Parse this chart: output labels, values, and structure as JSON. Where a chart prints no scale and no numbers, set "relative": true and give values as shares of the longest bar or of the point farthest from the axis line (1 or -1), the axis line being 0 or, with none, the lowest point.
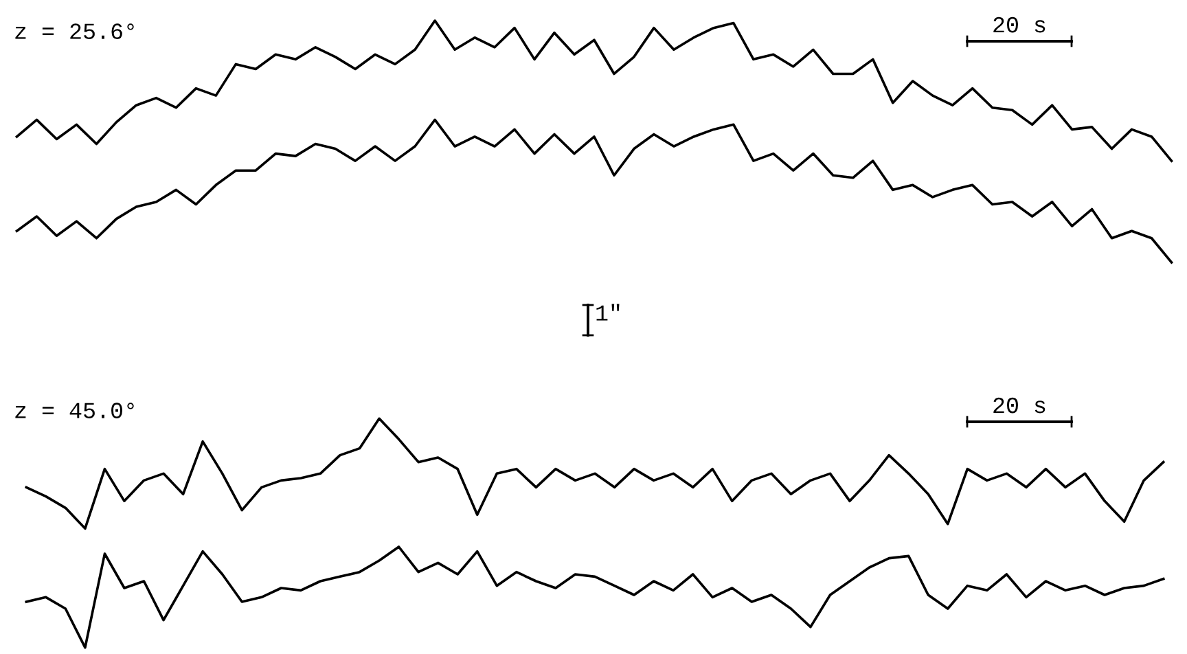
{
  "chart_data": [
    {
      "type": "line",
      "relative": true,
      "categories": [
        null,
        null,
        null,
        null,
        null,
        null,
        null,
        null,
        null,
        null,
        null,
        null,
        null,
        null,
        null,
        null,
        null,
        null,
        null,
        null,
        null,
        null,
        null,
        null,
        null,
        null,
        null,
        null,
        null,
        null,
        null,
        null,
        null,
        null,
        null,
        null,
        null,
        null,
        null,
        null,
        null,
        null,
        null,
        null,
        null,
        null,
        null,
        null,
        null,
        null,
        null,
        null,
        null,
        null,
        null,
        null,
        null,
        null,
        null
      ],
      "annotations": [
        "z = 25.6°",
        "20 s",
        "1\""
      ],
      "series": [
        {
          "color": "#000000",
          "values": [
            0.52,
            0.59,
            0.51,
            0.57,
            0.49,
            0.58,
            0.65,
            0.68,
            0.64,
            0.72,
            0.69,
            0.82,
            0.8,
            0.86,
            0.84,
            0.89,
            0.85,
            0.8,
            0.86,
            0.82,
            0.88,
            1.0,
            0.88,
            0.93,
            0.89,
            0.97,
            0.84,
            0.95,
            0.86,
            0.92,
            0.78,
            0.85,
            0.97,
            0.88,
            0.93,
            0.97,
            0.99,
            0.84,
            0.86,
            0.81,
            0.88,
            0.78,
            0.78,
            0.84,
            0.66,
            0.75,
            0.69,
            0.65,
            0.72,
            0.64,
            0.63,
            0.57,
            0.65,
            0.55,
            0.56,
            0.47,
            0.55,
            0.52,
            0.42
          ]
        },
        {
          "color": "#000000",
          "values": [
            0.13,
            0.19,
            0.11,
            0.17,
            0.1,
            0.18,
            0.23,
            0.25,
            0.3,
            0.24,
            0.32,
            0.38,
            0.38,
            0.45,
            0.44,
            0.49,
            0.47,
            0.42,
            0.48,
            0.42,
            0.48,
            0.59,
            0.48,
            0.52,
            0.48,
            0.55,
            0.45,
            0.53,
            0.45,
            0.52,
            0.36,
            0.47,
            0.53,
            0.48,
            0.52,
            0.55,
            0.57,
            0.42,
            0.45,
            0.38,
            0.45,
            0.36,
            0.35,
            0.42,
            0.3,
            0.32,
            0.27,
            0.3,
            0.32,
            0.24,
            0.25,
            0.19,
            0.25,
            0.15,
            0.22,
            0.1,
            0.13,
            0.1,
            0
          ]
        }
      ]
    },
    {
      "type": "line",
      "relative": true,
      "categories": [
        null,
        null,
        null,
        null,
        null,
        null,
        null,
        null,
        null,
        null,
        null,
        null,
        null,
        null,
        null,
        null,
        null,
        null,
        null,
        null,
        null,
        null,
        null,
        null,
        null,
        null,
        null,
        null,
        null,
        null,
        null,
        null,
        null,
        null,
        null,
        null,
        null,
        null,
        null,
        null,
        null,
        null,
        null,
        null,
        null,
        null,
        null,
        null,
        null,
        null,
        null,
        null,
        null,
        null,
        null,
        null,
        null,
        null,
        null
      ],
      "annotations": [
        "z = 45.0°",
        "20 s"
      ],
      "series": [
        {
          "color": "#000000",
          "values": [
            0.7,
            0.66,
            0.61,
            0.52,
            0.78,
            0.64,
            0.73,
            0.76,
            0.67,
            0.9,
            0.76,
            0.6,
            0.7,
            0.73,
            0.74,
            0.76,
            0.84,
            0.87,
            1.0,
            0.91,
            0.81,
            0.83,
            0.78,
            0.58,
            0.76,
            0.78,
            0.7,
            0.78,
            0.73,
            0.76,
            0.7,
            0.78,
            0.73,
            0.76,
            0.7,
            0.78,
            0.64,
            0.73,
            0.76,
            0.67,
            0.73,
            0.76,
            0.64,
            0.73,
            0.84,
            0.76,
            0.67,
            0.54,
            0.78,
            0.73,
            0.76,
            0.7,
            0.78,
            0.7,
            0.76,
            0.64,
            0.55,
            0.73,
            0.81
          ]
        },
        {
          "color": "#000000",
          "values": [
            0.2,
            0.22,
            0.17,
            0,
            0.41,
            0.26,
            0.29,
            0.12,
            0.27,
            0.42,
            0.32,
            0.2,
            0.22,
            0.26,
            0.25,
            0.29,
            0.31,
            0.33,
            0.38,
            0.44,
            0.33,
            0.37,
            0.32,
            0.42,
            0.27,
            0.33,
            0.29,
            0.26,
            0.32,
            0.31,
            0.27,
            0.23,
            0.29,
            0.25,
            0.32,
            0.22,
            0.26,
            0.2,
            0.23,
            0.17,
            0.09,
            0.23,
            0.29,
            0.35,
            0.39,
            0.4,
            0.23,
            0.17,
            0.27,
            0.25,
            0.32,
            0.22,
            0.29,
            0.25,
            0.27,
            0.23,
            0.26,
            0.27,
            0.3
          ]
        }
      ]
    }
  ]
}
